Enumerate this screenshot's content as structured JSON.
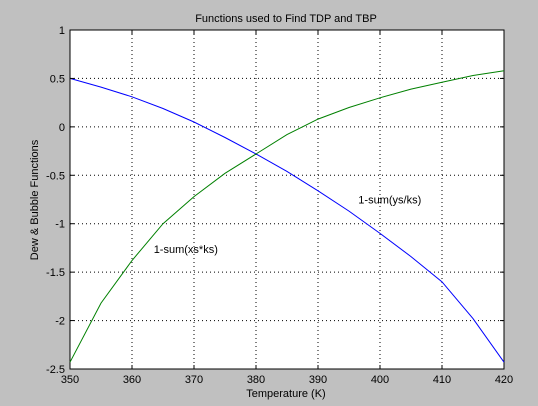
{
  "chart_data": {
    "type": "line",
    "title": "Functions used to Find TDP and TBP",
    "xlabel": "Temperature (K)",
    "ylabel": "Dew & Bubble Functions",
    "xlim": [
      350,
      420
    ],
    "ylim": [
      -2.5,
      1
    ],
    "xticks": [
      350,
      360,
      370,
      380,
      390,
      400,
      410,
      420
    ],
    "yticks": [
      -2.5,
      -2,
      -1.5,
      -1,
      -0.5,
      0,
      0.5,
      1
    ],
    "ytick_labels": [
      "-2.5",
      "-2",
      "-1.5",
      "-1",
      "-0.5",
      "0",
      "0.5",
      "1"
    ],
    "grid": true,
    "series": [
      {
        "color": "#0000ff",
        "x": [
          350,
          355,
          360,
          365,
          370,
          375,
          380,
          385,
          390,
          395,
          400,
          405,
          410,
          415,
          420
        ],
        "y": [
          0.5,
          0.41,
          0.31,
          0.19,
          0.05,
          -0.11,
          -0.28,
          -0.46,
          -0.66,
          -0.87,
          -1.1,
          -1.34,
          -1.6,
          -1.98,
          -2.43
        ]
      },
      {
        "color": "#008000",
        "x": [
          350,
          355,
          360,
          365,
          370,
          375,
          380,
          385,
          390,
          395,
          400,
          405,
          410,
          415,
          420
        ],
        "y": [
          -2.43,
          -1.82,
          -1.38,
          -1.0,
          -0.72,
          -0.48,
          -0.28,
          -0.08,
          0.08,
          0.2,
          0.3,
          0.39,
          0.46,
          0.53,
          0.58
        ]
      }
    ],
    "annotations": [
      {
        "text": "1-sum(ys/ks)",
        "x": 396.5,
        "y": -0.75
      },
      {
        "text": "1-sum(xs*ks)",
        "x": 363.5,
        "y": -1.26
      }
    ]
  }
}
